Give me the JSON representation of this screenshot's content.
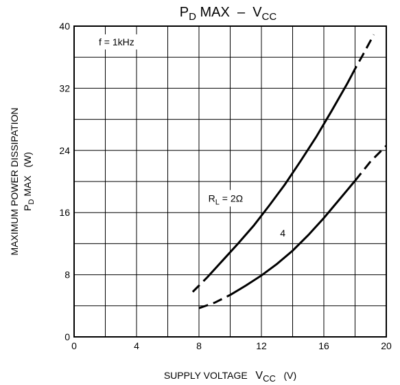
{
  "chart_data": {
    "type": "line",
    "title": {
      "prefix": "P",
      "prefix_sub": "D",
      "middle": " MAX  –  V",
      "suffix_sub": "CC"
    },
    "xlabel": {
      "text": "SUPPLY VOLTAGE",
      "sym": "V",
      "sym_sub": "CC",
      "unit": "(V)"
    },
    "ylabel": {
      "line1": "MAXIMUM POWER DISSIPATION",
      "line2_sym": "P",
      "line2_sub": "D",
      "line2_rest": " MAX   (W)"
    },
    "xlim": [
      0,
      20
    ],
    "ylim": [
      0,
      40
    ],
    "x_ticks": [
      0,
      4,
      8,
      12,
      16,
      20
    ],
    "y_ticks": [
      0,
      8,
      16,
      24,
      32,
      40
    ],
    "x_tick_labels": [
      "0",
      "4",
      "8",
      "12",
      "16",
      "20"
    ],
    "y_tick_labels": [
      "0",
      "8",
      "16",
      "24",
      "32",
      "40"
    ],
    "x_grid_step": 2,
    "y_grid_step": 4,
    "grid": true,
    "annotation": "f = 1kHz",
    "series": [
      {
        "name": "RL = 2Ω",
        "label_main": "R",
        "label_sub": "L",
        "label_rest": " = 2Ω",
        "points": [
          [
            7.6,
            5.8
          ],
          [
            8.5,
            7.6
          ],
          [
            9.5,
            9.8
          ],
          [
            10.5,
            12.0
          ],
          [
            11.5,
            14.3
          ],
          [
            12.5,
            16.9
          ],
          [
            13.5,
            19.6
          ],
          [
            14.5,
            22.6
          ],
          [
            15.5,
            25.7
          ],
          [
            16.5,
            29.1
          ],
          [
            17.5,
            32.6
          ],
          [
            18.0,
            34.5
          ],
          [
            18.5,
            36.3
          ],
          [
            19.2,
            38.9
          ]
        ],
        "solid_range": [
          8.5,
          17.8
        ]
      },
      {
        "name": "4",
        "label_main": "4",
        "label_sub": "",
        "label_rest": "",
        "points": [
          [
            8.0,
            3.7
          ],
          [
            9.0,
            4.4
          ],
          [
            10.0,
            5.4
          ],
          [
            11.0,
            6.6
          ],
          [
            12.0,
            7.9
          ],
          [
            13.0,
            9.4
          ],
          [
            14.0,
            11.1
          ],
          [
            15.0,
            13.1
          ],
          [
            16.0,
            15.3
          ],
          [
            17.0,
            17.7
          ],
          [
            18.0,
            20.1
          ],
          [
            19.0,
            22.6
          ],
          [
            20.0,
            24.6
          ]
        ],
        "solid_range": [
          9.8,
          18.0
        ]
      }
    ]
  }
}
